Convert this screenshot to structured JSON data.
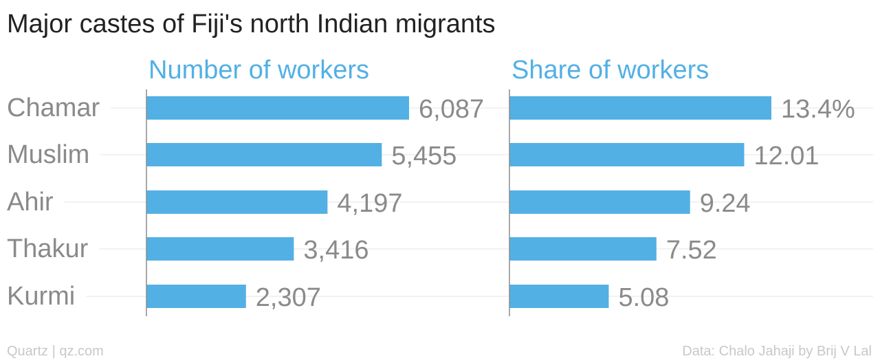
{
  "title": "Major castes of Fiji's north Indian migrants",
  "footer": {
    "source_left": "Quartz | qz.com",
    "source_right": "Data: Chalo Jahaji by Brij V Lal"
  },
  "colors": {
    "bar": "#52b0e4",
    "panel_title": "#52b0e4",
    "axis": "#8c8c8c",
    "grid": "#ededed",
    "label": "#8a8a8a"
  },
  "chart_data": {
    "type": "bar",
    "orientation": "horizontal",
    "categories": [
      "Chamar",
      "Muslim",
      "Ahir",
      "Thakur",
      "Kurmi"
    ],
    "grid": true,
    "panels": [
      {
        "title": "Number of workers",
        "values": [
          6087,
          5455,
          4197,
          3416,
          2307
        ],
        "value_labels": [
          "6,087",
          "5,455",
          "4,197",
          "3,416",
          "2,307"
        ],
        "xlim": [
          0,
          6087
        ]
      },
      {
        "title": "Share of workers",
        "values": [
          13.4,
          12.01,
          9.24,
          7.52,
          5.08
        ],
        "value_labels": [
          "13.4%",
          "12.01",
          "9.24",
          "7.52",
          "5.08"
        ],
        "xlim": [
          0,
          13.4
        ]
      }
    ]
  }
}
